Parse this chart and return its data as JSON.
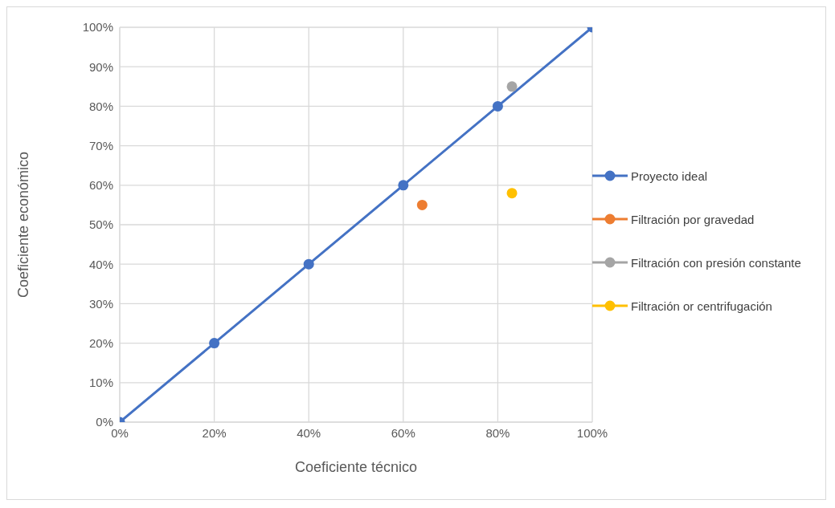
{
  "chart_data": {
    "type": "line",
    "xlabel": "Coeficiente técnico",
    "ylabel": "Coeficiente económico",
    "xlim": [
      0,
      100
    ],
    "ylim": [
      0,
      100
    ],
    "xticks": [
      {
        "value": 0,
        "label": "0%"
      },
      {
        "value": 20,
        "label": "20%"
      },
      {
        "value": 40,
        "label": "40%"
      },
      {
        "value": 60,
        "label": "60%"
      },
      {
        "value": 80,
        "label": "80%"
      },
      {
        "value": 100,
        "label": "100%"
      }
    ],
    "yticks": [
      {
        "value": 0,
        "label": "0%"
      },
      {
        "value": 10,
        "label": "10%"
      },
      {
        "value": 20,
        "label": "20%"
      },
      {
        "value": 30,
        "label": "30%"
      },
      {
        "value": 40,
        "label": "40%"
      },
      {
        "value": 50,
        "label": "50%"
      },
      {
        "value": 60,
        "label": "60%"
      },
      {
        "value": 70,
        "label": "70%"
      },
      {
        "value": 80,
        "label": "80%"
      },
      {
        "value": 90,
        "label": "90%"
      },
      {
        "value": 100,
        "label": "100%"
      }
    ],
    "series": [
      {
        "name": "Proyecto ideal",
        "color": "#4472c4",
        "x": [
          0,
          20,
          40,
          60,
          80,
          100
        ],
        "values": [
          0,
          20,
          40,
          60,
          80,
          100
        ]
      },
      {
        "name": "Filtración por gravedad",
        "color": "#ed7d31",
        "type": "scatter",
        "x": [
          64
        ],
        "values": [
          55
        ]
      },
      {
        "name": "Filtración con presión constante",
        "color": "#a5a5a5",
        "type": "scatter",
        "x": [
          83
        ],
        "values": [
          85
        ]
      },
      {
        "name": "Filtración or centrifugación",
        "color": "#ffc000",
        "type": "scatter",
        "x": [
          83
        ],
        "values": [
          58
        ]
      }
    ],
    "grid": true,
    "legend": "right",
    "marker": "circle",
    "line_style": "solid"
  }
}
